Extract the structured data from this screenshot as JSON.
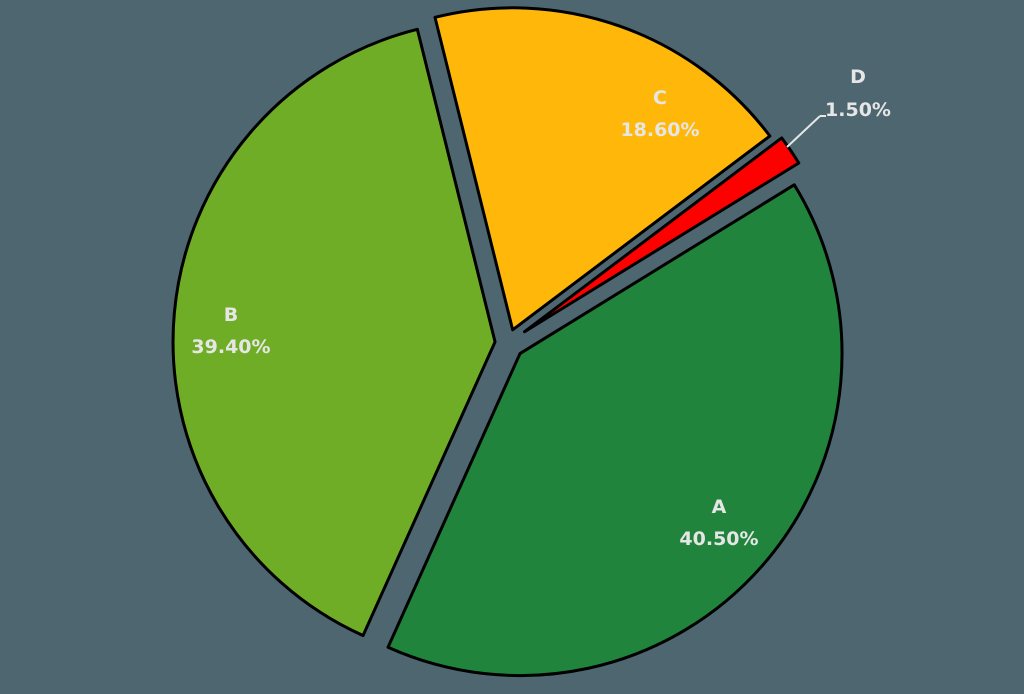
{
  "chart_data": {
    "type": "pie",
    "title": "",
    "exploded": true,
    "start_angle_deg": 58.4,
    "direction": "clockwise",
    "categories": [
      "A",
      "B",
      "C",
      "D"
    ],
    "values": [
      40.5,
      39.4,
      18.6,
      1.5
    ],
    "labels": [
      "40.50%",
      "39.40%",
      "18.60%",
      "1.50%"
    ],
    "colors": [
      "#21843c",
      "#70ad26",
      "#ffb809",
      "#ff0000"
    ],
    "legend": null,
    "background": "#4d6670",
    "label_color": "#e6e6e6"
  },
  "slices": [
    {
      "name": "A",
      "value": 40.5,
      "label": "40.50%",
      "color": "#21843c"
    },
    {
      "name": "B",
      "value": 39.4,
      "label": "39.40%",
      "color": "#70ad26"
    },
    {
      "name": "C",
      "value": 18.6,
      "label": "18.60%",
      "color": "#ffb809"
    },
    {
      "name": "D",
      "value": 1.5,
      "label": "1.50%",
      "color": "#ff0000"
    }
  ]
}
